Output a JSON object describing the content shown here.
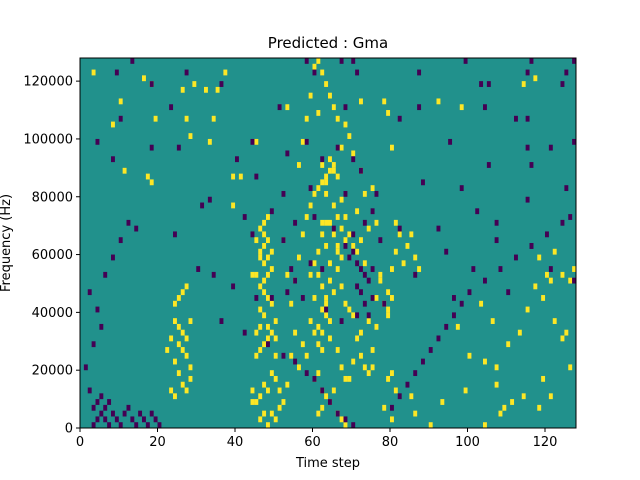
{
  "chart_data": {
    "type": "heatmap",
    "title": "Predicted : Gma",
    "xlabel": "Time step",
    "ylabel": "Frequency (Hz)",
    "xlim": [
      0,
      128
    ],
    "ylim": [
      0,
      128000
    ],
    "xticks": [
      0,
      20,
      40,
      60,
      80,
      100,
      120
    ],
    "yticks": [
      0,
      20000,
      40000,
      60000,
      80000,
      100000,
      120000
    ],
    "n_time_steps": 128,
    "n_freq_bins": 64,
    "bin_width_hz": 2000,
    "background_value": 0,
    "colors": {
      "background": "#21918c",
      "positive": "#fde725",
      "negative": "#440154"
    },
    "cells_positive": [
      [
        3,
        61
      ],
      [
        10,
        56
      ],
      [
        16,
        60
      ],
      [
        18,
        59
      ],
      [
        29,
        59
      ],
      [
        26,
        58
      ],
      [
        32,
        58
      ],
      [
        35,
        58
      ],
      [
        37,
        61
      ],
      [
        61,
        54
      ],
      [
        78,
        56
      ],
      [
        79,
        54
      ],
      [
        117,
        60
      ],
      [
        92,
        56
      ],
      [
        114,
        59
      ],
      [
        8,
        52
      ],
      [
        53,
        55
      ],
      [
        72,
        56
      ],
      [
        98,
        55
      ],
      [
        19,
        53
      ],
      [
        27,
        53
      ],
      [
        34,
        53
      ],
      [
        28,
        50
      ],
      [
        33,
        49
      ],
      [
        45,
        49
      ],
      [
        80,
        48
      ],
      [
        11,
        44
      ],
      [
        17,
        43
      ],
      [
        18,
        42
      ],
      [
        39,
        38
      ],
      [
        41,
        43
      ],
      [
        39,
        43
      ],
      [
        46,
        30
      ],
      [
        47,
        33
      ],
      [
        46,
        34
      ],
      [
        47,
        35
      ],
      [
        48,
        36
      ],
      [
        62,
        35
      ],
      [
        63,
        35
      ],
      [
        64,
        35
      ],
      [
        63,
        40
      ],
      [
        62,
        33
      ],
      [
        61,
        30
      ],
      [
        63,
        42
      ],
      [
        64,
        44
      ],
      [
        62,
        45
      ],
      [
        65,
        45
      ],
      [
        63,
        31
      ],
      [
        64,
        28
      ],
      [
        65,
        33
      ],
      [
        66,
        31
      ],
      [
        66,
        30
      ],
      [
        67,
        29
      ],
      [
        60,
        28
      ],
      [
        59,
        26
      ],
      [
        61,
        26
      ],
      [
        62,
        24
      ],
      [
        63,
        21
      ],
      [
        62,
        20
      ],
      [
        63,
        19
      ],
      [
        64,
        18
      ],
      [
        61,
        17
      ],
      [
        62,
        16
      ],
      [
        60,
        16
      ],
      [
        61,
        14
      ],
      [
        62,
        13
      ],
      [
        63,
        22
      ],
      [
        64,
        25
      ],
      [
        65,
        23
      ],
      [
        64,
        15
      ],
      [
        66,
        13
      ],
      [
        67,
        10
      ],
      [
        68,
        8
      ],
      [
        61,
        9
      ],
      [
        60,
        8
      ],
      [
        62,
        6
      ],
      [
        63,
        5
      ],
      [
        62,
        3
      ],
      [
        61,
        2
      ],
      [
        64,
        4
      ],
      [
        65,
        6
      ],
      [
        66,
        2
      ],
      [
        67,
        1
      ],
      [
        68,
        0
      ],
      [
        69,
        8
      ],
      [
        70,
        11
      ],
      [
        74,
        18
      ],
      [
        76,
        17
      ],
      [
        75,
        10
      ],
      [
        72,
        16
      ],
      [
        78,
        21
      ],
      [
        79,
        19
      ],
      [
        79,
        20
      ],
      [
        80,
        22
      ],
      [
        79,
        23
      ],
      [
        77,
        26
      ],
      [
        81,
        30
      ],
      [
        83,
        28
      ],
      [
        84,
        31
      ],
      [
        85,
        33
      ],
      [
        86,
        29
      ],
      [
        87,
        27
      ],
      [
        80,
        27
      ],
      [
        81,
        35
      ],
      [
        82,
        33
      ],
      [
        80,
        9
      ],
      [
        79,
        8
      ],
      [
        81,
        6
      ],
      [
        85,
        5
      ],
      [
        78,
        3
      ],
      [
        86,
        2
      ],
      [
        80,
        1
      ],
      [
        90,
        0
      ],
      [
        93,
        4
      ],
      [
        99,
        6
      ],
      [
        100,
        12
      ],
      [
        97,
        17
      ],
      [
        103,
        21
      ],
      [
        106,
        18
      ],
      [
        104,
        11
      ],
      [
        107,
        7
      ],
      [
        109,
        3
      ],
      [
        107,
        10
      ],
      [
        110,
        14
      ],
      [
        113,
        16
      ],
      [
        115,
        20
      ],
      [
        117,
        24
      ],
      [
        120,
        26
      ],
      [
        118,
        29
      ],
      [
        121,
        25
      ],
      [
        119,
        22
      ],
      [
        122,
        30
      ],
      [
        124,
        26
      ],
      [
        122,
        18
      ],
      [
        125,
        16
      ],
      [
        124,
        15
      ],
      [
        126,
        25
      ],
      [
        127,
        27
      ],
      [
        121,
        5
      ],
      [
        118,
        3
      ],
      [
        126,
        10
      ],
      [
        108,
        2
      ],
      [
        104,
        0
      ],
      [
        119,
        8
      ],
      [
        114,
        5
      ],
      [
        111,
        4
      ],
      [
        24,
        21
      ],
      [
        25,
        22
      ],
      [
        26,
        23
      ],
      [
        27,
        24
      ],
      [
        24,
        18
      ],
      [
        25,
        17
      ],
      [
        26,
        16
      ],
      [
        27,
        15
      ],
      [
        28,
        18
      ],
      [
        25,
        14
      ],
      [
        26,
        13
      ],
      [
        27,
        12
      ],
      [
        28,
        10
      ],
      [
        22,
        13
      ],
      [
        23,
        15
      ],
      [
        24,
        11
      ],
      [
        25,
        9
      ],
      [
        26,
        7
      ],
      [
        27,
        6
      ],
      [
        28,
        8
      ],
      [
        23,
        6
      ],
      [
        24,
        5
      ],
      [
        47,
        2
      ],
      [
        46,
        1
      ],
      [
        48,
        0
      ],
      [
        49,
        2
      ],
      [
        50,
        1
      ],
      [
        45,
        4
      ],
      [
        46,
        5
      ],
      [
        47,
        7
      ],
      [
        48,
        6
      ],
      [
        49,
        9
      ],
      [
        50,
        8
      ],
      [
        45,
        12
      ],
      [
        46,
        13
      ],
      [
        47,
        14
      ],
      [
        48,
        15
      ],
      [
        49,
        16
      ],
      [
        50,
        18
      ],
      [
        46,
        20
      ],
      [
        47,
        19
      ],
      [
        48,
        17
      ],
      [
        45,
        16
      ],
      [
        46,
        17
      ],
      [
        47,
        23
      ],
      [
        48,
        22
      ],
      [
        49,
        21
      ],
      [
        46,
        24
      ],
      [
        47,
        25
      ],
      [
        48,
        26
      ],
      [
        49,
        27
      ],
      [
        47,
        28
      ],
      [
        48,
        29
      ],
      [
        49,
        30
      ],
      [
        46,
        29
      ],
      [
        47,
        31
      ],
      [
        48,
        32
      ],
      [
        45,
        26
      ],
      [
        45,
        32
      ],
      [
        44,
        26
      ],
      [
        50,
        12
      ],
      [
        50,
        15
      ],
      [
        44,
        4
      ],
      [
        44,
        6
      ],
      [
        51,
        3
      ],
      [
        51,
        6
      ],
      [
        52,
        4
      ],
      [
        53,
        7
      ],
      [
        54,
        12
      ],
      [
        55,
        16
      ],
      [
        56,
        10
      ],
      [
        57,
        14
      ],
      [
        58,
        12
      ],
      [
        59,
        18
      ],
      [
        60,
        22
      ],
      [
        55,
        25
      ],
      [
        54,
        21
      ],
      [
        53,
        26
      ],
      [
        52,
        32
      ],
      [
        56,
        29
      ],
      [
        57,
        33
      ],
      [
        58,
        36
      ],
      [
        59,
        38
      ],
      [
        60,
        40
      ],
      [
        61,
        41
      ],
      [
        62,
        42
      ],
      [
        63,
        43
      ],
      [
        64,
        46
      ],
      [
        65,
        44
      ],
      [
        66,
        43
      ],
      [
        67,
        39
      ],
      [
        68,
        36
      ],
      [
        65,
        38
      ],
      [
        66,
        36
      ],
      [
        67,
        34
      ],
      [
        68,
        32
      ],
      [
        69,
        33
      ],
      [
        66,
        27
      ],
      [
        67,
        24
      ],
      [
        68,
        21
      ],
      [
        69,
        20
      ],
      [
        70,
        19
      ],
      [
        71,
        15
      ],
      [
        72,
        12
      ],
      [
        73,
        10
      ],
      [
        74,
        9
      ],
      [
        75,
        13
      ],
      [
        76,
        22
      ],
      [
        77,
        25
      ],
      [
        73,
        28
      ],
      [
        71,
        30
      ],
      [
        70,
        31
      ],
      [
        72,
        32
      ],
      [
        74,
        34
      ],
      [
        76,
        35
      ],
      [
        71,
        37
      ],
      [
        73,
        40
      ],
      [
        75,
        41
      ],
      [
        72,
        44
      ],
      [
        70,
        47
      ],
      [
        69,
        50
      ],
      [
        68,
        52
      ],
      [
        67,
        48
      ],
      [
        66,
        53
      ],
      [
        65,
        55
      ],
      [
        64,
        57
      ],
      [
        63,
        59
      ],
      [
        62,
        61
      ],
      [
        61,
        63
      ],
      [
        60,
        62
      ],
      [
        59,
        57
      ],
      [
        58,
        53
      ],
      [
        57,
        49
      ],
      [
        56,
        45
      ]
    ],
    "cells_negative": [
      [
        13,
        63
      ],
      [
        58,
        63
      ],
      [
        67,
        63
      ],
      [
        70,
        63
      ],
      [
        99,
        63
      ],
      [
        116,
        63
      ],
      [
        127,
        63
      ],
      [
        9,
        61
      ],
      [
        27,
        61
      ],
      [
        60,
        61
      ],
      [
        71,
        61
      ],
      [
        87,
        61
      ],
      [
        115,
        61
      ],
      [
        125,
        61
      ],
      [
        18,
        59
      ],
      [
        36,
        59
      ],
      [
        103,
        59
      ],
      [
        105,
        59
      ],
      [
        124,
        59
      ],
      [
        23,
        55
      ],
      [
        51,
        55
      ],
      [
        68,
        55
      ],
      [
        87,
        55
      ],
      [
        104,
        55
      ],
      [
        10,
        53
      ],
      [
        82,
        53
      ],
      [
        115,
        53
      ],
      [
        112,
        53
      ],
      [
        4,
        49
      ],
      [
        18,
        48
      ],
      [
        58,
        49
      ],
      [
        66,
        48
      ],
      [
        95,
        49
      ],
      [
        115,
        48
      ],
      [
        127,
        49
      ],
      [
        8,
        46
      ],
      [
        25,
        48
      ],
      [
        44,
        49
      ],
      [
        53,
        47
      ],
      [
        62,
        46
      ],
      [
        70,
        46
      ],
      [
        72,
        44
      ],
      [
        105,
        45
      ],
      [
        116,
        45
      ],
      [
        121,
        48
      ],
      [
        40,
        46
      ],
      [
        45,
        43
      ],
      [
        52,
        40
      ],
      [
        59,
        41
      ],
      [
        68,
        40
      ],
      [
        76,
        40
      ],
      [
        88,
        42
      ],
      [
        98,
        41
      ],
      [
        115,
        39
      ],
      [
        125,
        41
      ],
      [
        33,
        39
      ],
      [
        31,
        38
      ],
      [
        42,
        36
      ],
      [
        49,
        37
      ],
      [
        55,
        35
      ],
      [
        60,
        36
      ],
      [
        75,
        37
      ],
      [
        82,
        34
      ],
      [
        92,
        34
      ],
      [
        102,
        37
      ],
      [
        107,
        35
      ],
      [
        126,
        36
      ],
      [
        14,
        34
      ],
      [
        24,
        33
      ],
      [
        44,
        33
      ],
      [
        52,
        32
      ],
      [
        65,
        34
      ],
      [
        70,
        33
      ],
      [
        73,
        35
      ],
      [
        77,
        32
      ],
      [
        68,
        31
      ],
      [
        69,
        29
      ],
      [
        70,
        30
      ],
      [
        71,
        28
      ],
      [
        72,
        27
      ],
      [
        73,
        26
      ],
      [
        74,
        25
      ],
      [
        75,
        27
      ],
      [
        71,
        24
      ],
      [
        72,
        23
      ],
      [
        73,
        21
      ],
      [
        74,
        19
      ],
      [
        75,
        22
      ],
      [
        94,
        30
      ],
      [
        107,
        32
      ],
      [
        116,
        31
      ],
      [
        62,
        27
      ],
      [
        59,
        28
      ],
      [
        55,
        25
      ],
      [
        54,
        27
      ],
      [
        53,
        23
      ],
      [
        30,
        27
      ],
      [
        34,
        26
      ],
      [
        39,
        24
      ],
      [
        45,
        22
      ],
      [
        49,
        22
      ],
      [
        57,
        22
      ],
      [
        63,
        20
      ],
      [
        67,
        18
      ],
      [
        71,
        19
      ],
      [
        78,
        21
      ],
      [
        86,
        26
      ],
      [
        96,
        22
      ],
      [
        101,
        27
      ],
      [
        110,
        23
      ],
      [
        121,
        27
      ],
      [
        127,
        25
      ],
      [
        36,
        18
      ],
      [
        42,
        16
      ],
      [
        48,
        14
      ],
      [
        52,
        12
      ],
      [
        55,
        11
      ],
      [
        58,
        9
      ],
      [
        60,
        8
      ],
      [
        62,
        6
      ],
      [
        64,
        4
      ],
      [
        66,
        2
      ],
      [
        68,
        1
      ],
      [
        70,
        0
      ],
      [
        80,
        3
      ],
      [
        82,
        5
      ],
      [
        84,
        7
      ],
      [
        86,
        9
      ],
      [
        88,
        11
      ],
      [
        90,
        13
      ],
      [
        92,
        15
      ],
      [
        94,
        17
      ],
      [
        96,
        19
      ],
      [
        98,
        21
      ],
      [
        100,
        23
      ],
      [
        104,
        25
      ],
      [
        108,
        27
      ],
      [
        112,
        29
      ],
      [
        116,
        31
      ],
      [
        120,
        33
      ],
      [
        124,
        35
      ],
      [
        3,
        0
      ],
      [
        4,
        1
      ],
      [
        5,
        2
      ],
      [
        6,
        3
      ],
      [
        7,
        4
      ],
      [
        3,
        3
      ],
      [
        4,
        4
      ],
      [
        5,
        5
      ],
      [
        6,
        1
      ],
      [
        7,
        0
      ],
      [
        8,
        2
      ],
      [
        9,
        1
      ],
      [
        10,
        0
      ],
      [
        11,
        2
      ],
      [
        12,
        3
      ],
      [
        13,
        1
      ],
      [
        14,
        0
      ],
      [
        15,
        2
      ],
      [
        16,
        1
      ],
      [
        17,
        0
      ],
      [
        18,
        2
      ],
      [
        19,
        1
      ],
      [
        20,
        0
      ],
      [
        2,
        6
      ],
      [
        1,
        10
      ],
      [
        3,
        14
      ],
      [
        5,
        17
      ],
      [
        4,
        20
      ],
      [
        2,
        23
      ],
      [
        6,
        26
      ],
      [
        8,
        29
      ],
      [
        10,
        32
      ],
      [
        12,
        35
      ]
    ]
  }
}
